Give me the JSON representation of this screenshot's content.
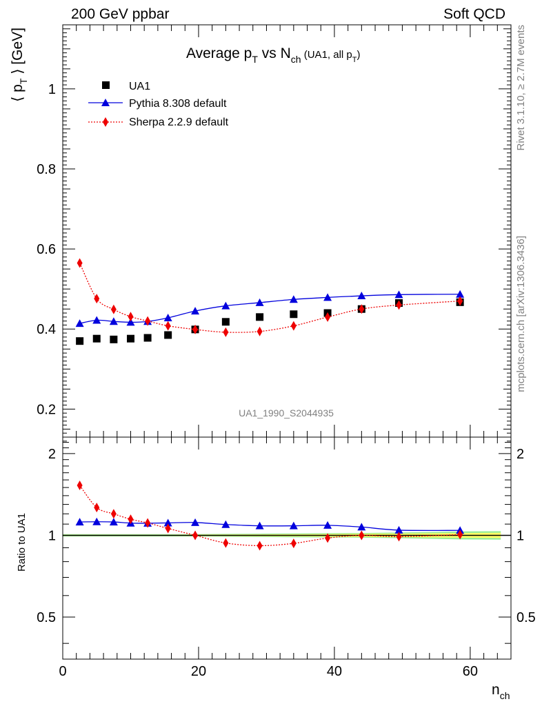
{
  "header": {
    "left": "200 GeV ppbar",
    "right": "Soft QCD"
  },
  "side_text": {
    "rivet": "Rivet 3.1.10, ≥ 2.7M events",
    "mcplots": "mcplots.cern.ch [arXiv:1306.3436]"
  },
  "colors": {
    "data": "#000000",
    "pythia": "#0000dd",
    "sherpa": "#ee0000",
    "band_inner": "#ffff66",
    "band_outer": "#99ee99"
  },
  "chart_data": [
    {
      "type": "scatter",
      "panel": "main",
      "title_parts": {
        "p1": "Average p",
        "s1": "T",
        "p2": " vs N",
        "s2": "ch",
        "p3": " (UA1, all p",
        "s3": "T",
        "p4": ")"
      },
      "ylabel": "⟨ p",
      "ylabel_sub": "T",
      "ylabel_end": " ⟩ [GeV]",
      "watermark": "UA1_1990_S2044935",
      "xlim": [
        0,
        66
      ],
      "ylim": [
        0.13,
        1.16
      ],
      "yticks": [
        0.2,
        0.4,
        0.6,
        0.8,
        1
      ],
      "ytick_labels": [
        "0.2",
        "0.4",
        "0.6",
        "0.8",
        "1"
      ],
      "legend_position": "top-left",
      "series": [
        {
          "name": "UA1",
          "marker": "square",
          "x": [
            2.5,
            5,
            7.5,
            10,
            12.5,
            15.5,
            19.5,
            24,
            29,
            34,
            39,
            44,
            49.5,
            58.5
          ],
          "y": [
            0.37,
            0.376,
            0.374,
            0.376,
            0.378,
            0.385,
            0.399,
            0.418,
            0.43,
            0.437,
            0.44,
            0.45,
            0.465,
            0.467
          ]
        },
        {
          "name": "Pythia 8.308 default",
          "marker": "triangle",
          "x": [
            2.5,
            5,
            7.5,
            10,
            12.5,
            15.5,
            19.5,
            24,
            29,
            34,
            39,
            44,
            49.5,
            58.5
          ],
          "y": [
            0.414,
            0.422,
            0.419,
            0.417,
            0.419,
            0.428,
            0.445,
            0.458,
            0.466,
            0.474,
            0.479,
            0.483,
            0.486,
            0.487
          ]
        },
        {
          "name": "Sherpa 2.2.9 default",
          "marker": "diamond",
          "x": [
            2.5,
            5,
            7.5,
            10,
            12.5,
            15.5,
            19.5,
            24,
            29,
            34,
            39,
            44,
            49.5,
            58.5
          ],
          "y": [
            0.565,
            0.476,
            0.449,
            0.431,
            0.42,
            0.408,
            0.399,
            0.392,
            0.394,
            0.408,
            0.43,
            0.45,
            0.46,
            0.47
          ]
        }
      ]
    },
    {
      "type": "scatter",
      "panel": "ratio",
      "ylabel": "Ratio to UA1",
      "xlabel": "n",
      "xlabel_sub": "ch",
      "xlim": [
        0,
        66
      ],
      "ylim_log": [
        0.35,
        2.3
      ],
      "yticks": [
        0.5,
        1,
        2
      ],
      "ytick_labels": [
        "0.5",
        "1",
        "2"
      ],
      "xticks": [
        0,
        20,
        40,
        60
      ],
      "xtick_labels": [
        "0",
        "20",
        "40",
        "60"
      ],
      "band_outer": {
        "x": [
          2.5,
          5,
          7.5,
          10,
          12.5,
          15.5,
          19.5,
          24,
          29,
          34,
          39,
          44,
          49.5,
          58.5,
          64.5
        ],
        "half_width": [
          0.01,
          0.01,
          0.01,
          0.01,
          0.01,
          0.01,
          0.01,
          0.012,
          0.014,
          0.016,
          0.018,
          0.02,
          0.024,
          0.034,
          0.036
        ]
      },
      "band_inner": {
        "x": [
          2.5,
          5,
          7.5,
          10,
          12.5,
          15.5,
          19.5,
          24,
          29,
          34,
          39,
          44,
          49.5,
          58.5,
          64.5
        ],
        "half_width": [
          0.005,
          0.005,
          0.005,
          0.005,
          0.005,
          0.005,
          0.006,
          0.007,
          0.008,
          0.009,
          0.011,
          0.013,
          0.015,
          0.02,
          0.022
        ]
      },
      "series": [
        {
          "name": "Pythia 8.308 default",
          "x": [
            2.5,
            5,
            7.5,
            10,
            12.5,
            15.5,
            19.5,
            24,
            29,
            34,
            39,
            44,
            49.5,
            58.5
          ],
          "y": [
            1.12,
            1.122,
            1.12,
            1.109,
            1.108,
            1.111,
            1.115,
            1.096,
            1.084,
            1.084,
            1.089,
            1.073,
            1.045,
            1.043
          ]
        },
        {
          "name": "Sherpa 2.2.9 default",
          "x": [
            2.5,
            5,
            7.5,
            10,
            12.5,
            15.5,
            19.5,
            24,
            29,
            34,
            39,
            44,
            49.5,
            58.5
          ],
          "y": [
            1.527,
            1.266,
            1.2,
            1.146,
            1.111,
            1.06,
            1.0,
            0.937,
            0.916,
            0.934,
            0.977,
            1.0,
            0.989,
            1.006
          ]
        }
      ]
    }
  ]
}
